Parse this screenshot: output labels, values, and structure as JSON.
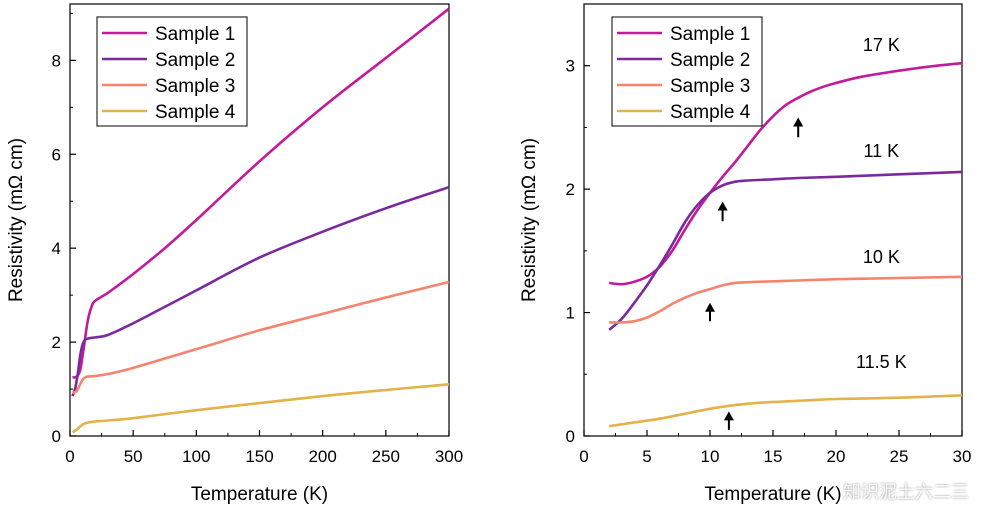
{
  "colors": {
    "sample1": "#c21a9a",
    "sample2": "#7b2a9e",
    "sample3": "#f4846e",
    "sample4": "#e3b24a"
  },
  "watermark": "知识泥土六二三",
  "chart_data": [
    {
      "type": "line",
      "xlabel": "Temperature (K)",
      "ylabel": "Resistivity (mΩ cm)",
      "xlim": [
        0,
        300
      ],
      "ylim": [
        0,
        9.2
      ],
      "xticks": [
        0,
        50,
        100,
        150,
        200,
        250,
        300
      ],
      "yticks": [
        0,
        2,
        4,
        6,
        8
      ],
      "legend_position": "top-left",
      "series": [
        {
          "name": "Sample 1",
          "color": "#c21a9a",
          "x": [
            2,
            5,
            8,
            11,
            14,
            17,
            20,
            30,
            50,
            75,
            100,
            150,
            200,
            250,
            300
          ],
          "y": [
            1.25,
            1.26,
            1.4,
            1.9,
            2.45,
            2.75,
            2.88,
            3.05,
            3.45,
            4.0,
            4.6,
            5.85,
            7.0,
            8.05,
            9.1
          ]
        },
        {
          "name": "Sample 2",
          "color": "#7b2a9e",
          "x": [
            2,
            4,
            6,
            8,
            10,
            12,
            15,
            20,
            30,
            50,
            75,
            100,
            150,
            200,
            250,
            300
          ],
          "y": [
            0.85,
            1.0,
            1.3,
            1.7,
            1.95,
            2.05,
            2.08,
            2.1,
            2.15,
            2.4,
            2.75,
            3.1,
            3.8,
            4.35,
            4.85,
            5.3
          ]
        },
        {
          "name": "Sample 3",
          "color": "#f4846e",
          "x": [
            2,
            5,
            8,
            10,
            13,
            20,
            30,
            50,
            100,
            150,
            200,
            250,
            300
          ],
          "y": [
            0.92,
            0.95,
            1.1,
            1.2,
            1.26,
            1.28,
            1.32,
            1.45,
            1.85,
            2.25,
            2.6,
            2.95,
            3.28
          ]
        },
        {
          "name": "Sample 4",
          "color": "#e3b24a",
          "x": [
            2,
            5,
            8,
            11,
            15,
            20,
            30,
            50,
            100,
            150,
            200,
            250,
            300
          ],
          "y": [
            0.08,
            0.13,
            0.2,
            0.26,
            0.29,
            0.31,
            0.33,
            0.38,
            0.55,
            0.7,
            0.85,
            0.98,
            1.1
          ]
        }
      ]
    },
    {
      "type": "line",
      "xlabel": "Temperature (K)",
      "ylabel": "Resistivity (mΩ cm)",
      "xlim": [
        0,
        30
      ],
      "ylim": [
        0,
        3.5
      ],
      "xticks": [
        0,
        5,
        10,
        15,
        20,
        25,
        30
      ],
      "yticks": [
        0,
        1,
        2,
        3
      ],
      "legend_position": "top-left",
      "series": [
        {
          "name": "Sample 1",
          "color": "#c21a9a",
          "x": [
            2,
            3,
            4,
            5,
            6,
            7,
            8,
            9,
            10,
            11,
            12,
            13,
            14,
            15,
            16,
            17,
            18,
            19,
            20,
            22,
            25,
            28,
            30
          ],
          "y": [
            1.24,
            1.23,
            1.25,
            1.29,
            1.37,
            1.5,
            1.67,
            1.83,
            1.97,
            2.1,
            2.22,
            2.35,
            2.48,
            2.59,
            2.68,
            2.74,
            2.79,
            2.83,
            2.86,
            2.91,
            2.96,
            3.0,
            3.02
          ]
        },
        {
          "name": "Sample 2",
          "color": "#7b2a9e",
          "x": [
            2,
            3,
            4,
            5,
            6,
            7,
            8,
            9,
            10,
            11,
            12,
            13,
            15,
            17,
            20,
            25,
            30
          ],
          "y": [
            0.86,
            0.95,
            1.08,
            1.22,
            1.38,
            1.55,
            1.73,
            1.87,
            1.97,
            2.03,
            2.06,
            2.07,
            2.08,
            2.09,
            2.1,
            2.12,
            2.14
          ]
        },
        {
          "name": "Sample 3",
          "color": "#f4846e",
          "x": [
            2,
            3,
            4,
            5,
            6,
            7,
            8,
            9,
            10,
            11,
            12,
            14,
            17,
            20,
            25,
            30
          ],
          "y": [
            0.92,
            0.92,
            0.93,
            0.96,
            1.01,
            1.07,
            1.12,
            1.16,
            1.19,
            1.22,
            1.24,
            1.25,
            1.26,
            1.27,
            1.28,
            1.29
          ]
        },
        {
          "name": "Sample 4",
          "color": "#e3b24a",
          "x": [
            2,
            4,
            6,
            8,
            10,
            12,
            14,
            16,
            18,
            20,
            25,
            30
          ],
          "y": [
            0.08,
            0.11,
            0.14,
            0.18,
            0.22,
            0.25,
            0.27,
            0.28,
            0.29,
            0.3,
            0.31,
            0.33
          ]
        }
      ],
      "annotations": [
        {
          "text": "17 K",
          "x": 23.6,
          "y": 3.12,
          "arrow_x": 17,
          "arrow_y_tip": 2.58,
          "arrow_y_tail": 2.42
        },
        {
          "text": "11 K",
          "x": 23.6,
          "y": 2.26,
          "arrow_x": 11,
          "arrow_y_tip": 1.9,
          "arrow_y_tail": 1.74
        },
        {
          "text": "10 K",
          "x": 23.6,
          "y": 1.4,
          "arrow_x": 10,
          "arrow_y_tip": 1.08,
          "arrow_y_tail": 0.93
        },
        {
          "text": "11.5 K",
          "x": 23.6,
          "y": 0.55,
          "arrow_x": 11.5,
          "arrow_y_tip": 0.2,
          "arrow_y_tail": 0.05
        }
      ]
    }
  ]
}
